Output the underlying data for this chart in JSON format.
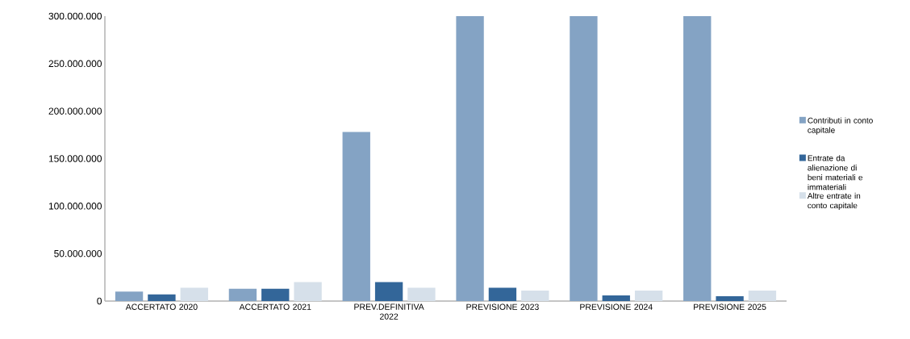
{
  "chart_data": {
    "type": "bar",
    "categories": [
      "ACCERTATO 2020",
      "ACCERTATO 2021",
      "PREV.DEFINITIVA 2022",
      "PREVISIONE 2023",
      "PREVISIONE 2024",
      "PREVISIONE 2025"
    ],
    "series": [
      {
        "name": "Contributi in conto capitale",
        "color": "#84a3c4",
        "values": [
          10000000,
          13000000,
          178000000,
          300000000,
          300000000,
          300000000
        ]
      },
      {
        "name": "Entrate da alienazione di beni materiali e immateriali",
        "color": "#336699",
        "values": [
          7000000,
          13000000,
          20000000,
          14000000,
          6000000,
          5000000
        ]
      },
      {
        "name": "Altre entrate in conto capitale",
        "color": "#d6e0ea",
        "values": [
          14000000,
          20000000,
          14000000,
          11000000,
          11000000,
          11000000
        ]
      }
    ],
    "ylim": [
      0,
      300000000
    ],
    "yticks": [
      {
        "value": 0,
        "label": "0"
      },
      {
        "value": 50000000,
        "label": "50.000.000"
      },
      {
        "value": 100000000,
        "label": "100.000.000"
      },
      {
        "value": 150000000,
        "label": "150.000.000"
      },
      {
        "value": 200000000,
        "label": "200.000.000"
      },
      {
        "value": 250000000,
        "label": "250.000.000"
      },
      {
        "value": 300000000,
        "label": "300.000.000"
      }
    ],
    "legend": "right",
    "grid": false
  }
}
